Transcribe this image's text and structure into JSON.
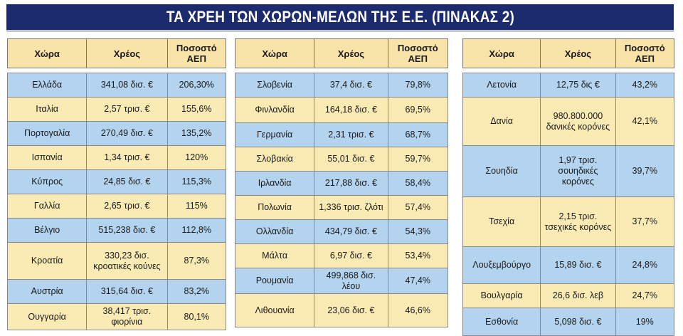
{
  "title": "ΤΑ ΧΡΕΗ ΤΩΝ ΧΩΡΩΝ-ΜΕΛΩΝ ΤΗΣ Ε.Ε. (ΠΙΝΑΚΑΣ 2)",
  "headers": {
    "country": "Χώρα",
    "debt": "Χρέος",
    "percent": "Ποσοστό ΑΕΠ"
  },
  "tables": [
    {
      "rows": [
        {
          "country": "Ελλάδα",
          "debt": "341,08 δισ. €",
          "percent": "206,30%"
        },
        {
          "country": "Ιταλία",
          "debt": "2,57 τρισ. €",
          "percent": "155,6%"
        },
        {
          "country": "Πορτογαλία",
          "debt": "270,49 δισ. €",
          "percent": "135,2%"
        },
        {
          "country": "Ισπανία",
          "debt": "1,34 τρισ. €",
          "percent": "120%"
        },
        {
          "country": "Κύπρος",
          "debt": "24,85 δισ. €",
          "percent": "115,3%"
        },
        {
          "country": "Γαλλία",
          "debt": "2,65 τρισ. €",
          "percent": "115%"
        },
        {
          "country": "Βέλγιο",
          "debt": "515,238 δισ. €",
          "percent": "112,8%"
        },
        {
          "country": "Κροατία",
          "debt": "330,23 δισ. κροατικές κούνες",
          "percent": "87,3%"
        },
        {
          "country": "Αυστρία",
          "debt": "315,64 δισ. €",
          "percent": "83,2%"
        },
        {
          "country": "Ουγγαρία",
          "debt": "38,417 τρισ. φιορίνια",
          "percent": "80,1%"
        }
      ]
    },
    {
      "rows": [
        {
          "country": "Σλοβενία",
          "debt": "37,4 δισ. €",
          "percent": "79,8%"
        },
        {
          "country": "Φινλανδία",
          "debt": "164,18 δισ. €",
          "percent": "69,5%"
        },
        {
          "country": "Γερμανία",
          "debt": "2,31 τρισ. €",
          "percent": "68,7%"
        },
        {
          "country": "Σλοβακία",
          "debt": "55,01 δισ. €",
          "percent": "59,7%"
        },
        {
          "country": "Ιρλανδία",
          "debt": "217,88 δισ. €",
          "percent": "58,4%"
        },
        {
          "country": "Πολωνία",
          "debt": "1,336 τρισ. ζλότι",
          "percent": "57,4%"
        },
        {
          "country": "Ολλανδία",
          "debt": "434,79 δισ. €",
          "percent": "54,3%"
        },
        {
          "country": "Μάλτα",
          "debt": "6,97 δισ. €",
          "percent": "53,4%"
        },
        {
          "country": "Ρουμανία",
          "debt": "499,868 δισ. λέου",
          "percent": "47,4%"
        },
        {
          "country": "Λιθουανία",
          "debt": "23,06 δισ. €",
          "percent": "46,6%"
        }
      ]
    },
    {
      "rows": [
        {
          "country": "Λετονία",
          "debt": "12,75 δις €",
          "percent": "43,2%"
        },
        {
          "country": "Δανία",
          "debt": "980.800.000 δανικές κορόνες",
          "percent": "42,1%"
        },
        {
          "country": "Σουηδία",
          "debt": "1,97 τρισ. σουηδικές κορόνες",
          "percent": "39,7%"
        },
        {
          "country": "Τσεχία",
          "debt": "2,15 τρισ. τσεχικές κορόνες",
          "percent": "37,7%"
        },
        {
          "country": "Λουξεμβούργο",
          "debt": "15,89 δισ. €",
          "percent": "24,8%"
        },
        {
          "country": "Βουλγαρία",
          "debt": "26,6 δισ. λεβ",
          "percent": "24,7%"
        },
        {
          "country": "Εσθονία",
          "debt": "5,098 δισ. €",
          "percent": "19%"
        }
      ]
    }
  ]
}
